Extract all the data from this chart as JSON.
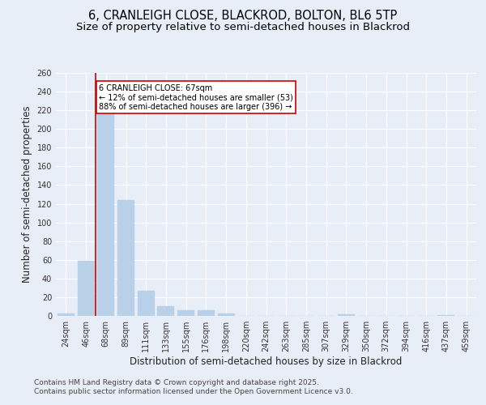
{
  "title_line1": "6, CRANLEIGH CLOSE, BLACKROD, BOLTON, BL6 5TP",
  "title_line2": "Size of property relative to semi-detached houses in Blackrod",
  "xlabel": "Distribution of semi-detached houses by size in Blackrod",
  "ylabel": "Number of semi-detached properties",
  "categories": [
    "24sqm",
    "46sqm",
    "68sqm",
    "89sqm",
    "111sqm",
    "133sqm",
    "155sqm",
    "176sqm",
    "198sqm",
    "220sqm",
    "242sqm",
    "263sqm",
    "285sqm",
    "307sqm",
    "329sqm",
    "350sqm",
    "372sqm",
    "394sqm",
    "416sqm",
    "437sqm",
    "459sqm"
  ],
  "values": [
    3,
    59,
    217,
    124,
    27,
    10,
    6,
    6,
    3,
    0,
    0,
    0,
    0,
    0,
    2,
    0,
    0,
    0,
    0,
    1,
    0
  ],
  "bar_color": "#b8d0e8",
  "bar_edgecolor": "#b8d0e8",
  "property_line_x": 1.5,
  "annotation_text": "6 CRANLEIGH CLOSE: 67sqm\n← 12% of semi-detached houses are smaller (53)\n88% of semi-detached houses are larger (396) →",
  "annotation_box_color": "#ffffff",
  "annotation_box_edgecolor": "#cc0000",
  "vline_color": "#cc0000",
  "ylim": [
    0,
    260
  ],
  "yticks": [
    0,
    20,
    40,
    60,
    80,
    100,
    120,
    140,
    160,
    180,
    200,
    220,
    240,
    260
  ],
  "footer_text": "Contains HM Land Registry data © Crown copyright and database right 2025.\nContains public sector information licensed under the Open Government Licence v3.0.",
  "bg_color": "#e8eef8",
  "plot_bg_color": "#e8eef8",
  "title_fontsize": 10.5,
  "subtitle_fontsize": 9.5,
  "tick_fontsize": 7,
  "label_fontsize": 8.5,
  "footer_fontsize": 6.5
}
